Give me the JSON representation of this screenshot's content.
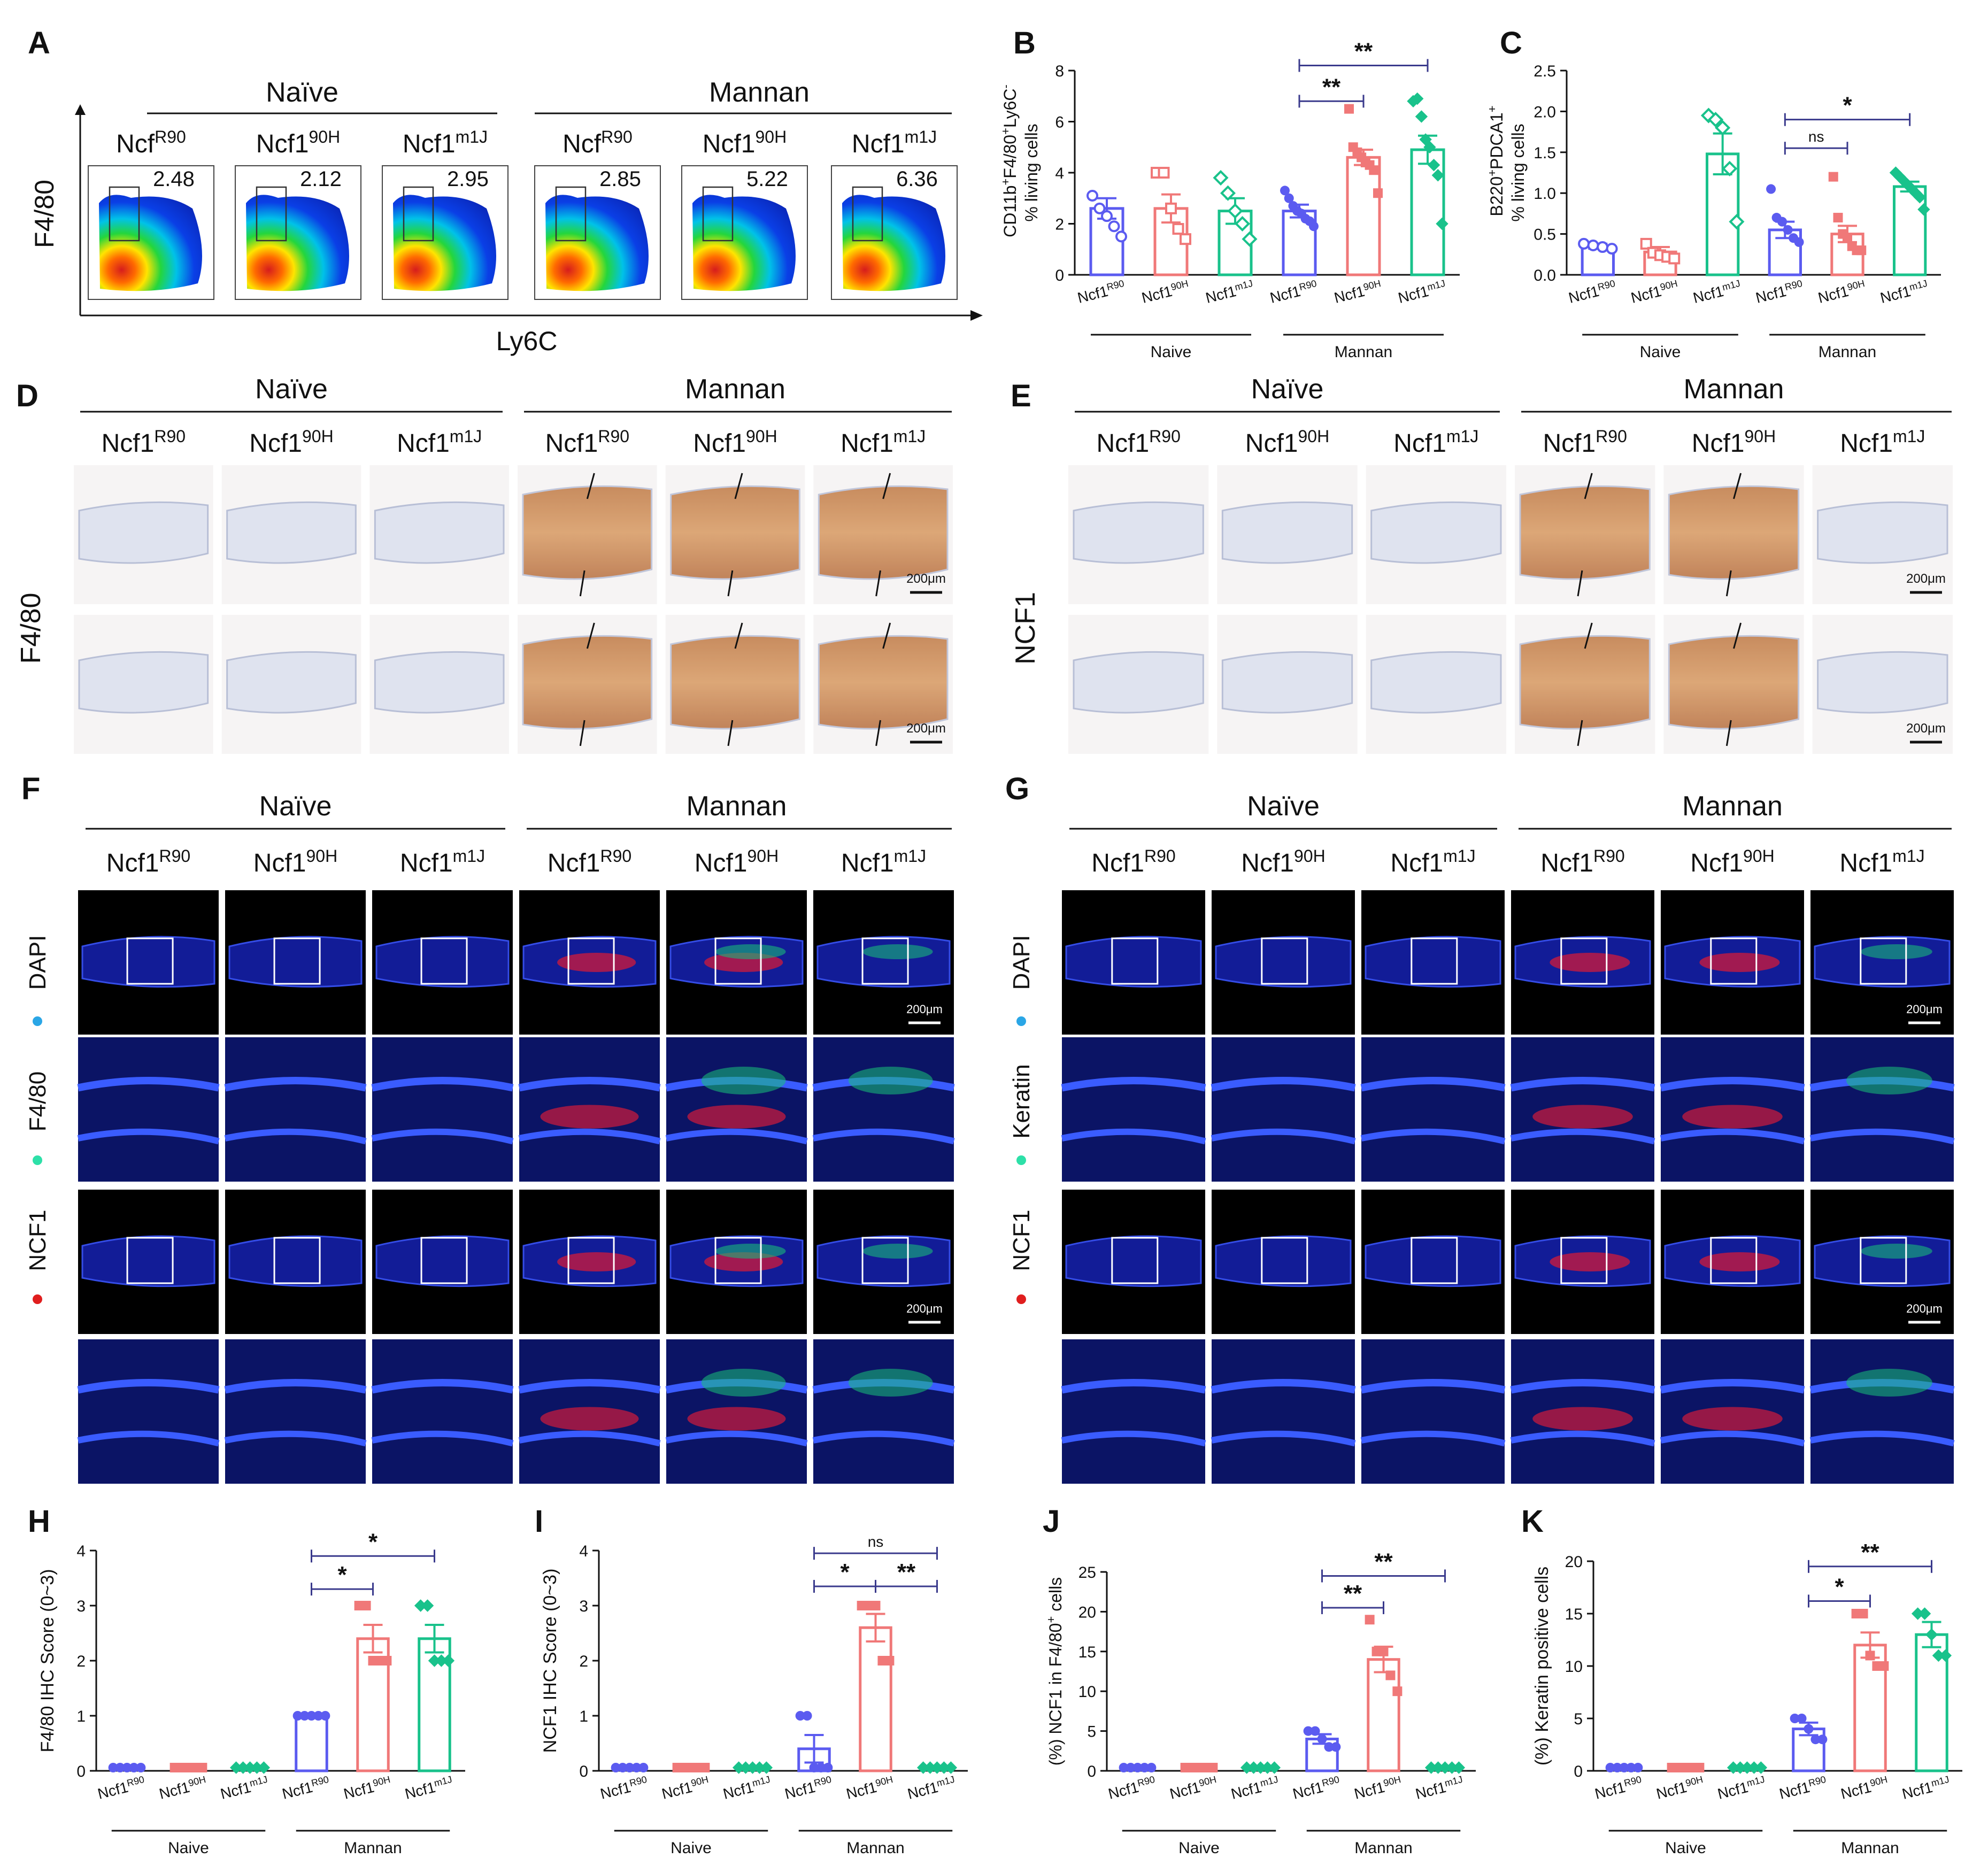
{
  "colors": {
    "R90": "#5b5bf0",
    "90H": "#f07878",
    "m1J": "#19c28b",
    "ink": "#111111"
  },
  "panels": {
    "A": {
      "letter": "A",
      "groups": [
        "Naïve",
        "Mannan"
      ],
      "yaxis": "F4/80",
      "xaxis": "Ly6C",
      "genotypes": [
        {
          "base": "Ncf",
          "sup": "R90"
        },
        {
          "base": "Ncf1",
          "sup": "90H"
        },
        {
          "base": "Ncf1",
          "sup": "m1J"
        },
        {
          "base": "Ncf",
          "sup": "R90"
        },
        {
          "base": "Ncf1",
          "sup": "90H"
        },
        {
          "base": "Ncf1",
          "sup": "m1J"
        }
      ],
      "gate_values": [
        "2.48",
        "2.12",
        "2.95",
        "2.85",
        "5.22",
        "6.36"
      ]
    },
    "D": {
      "letter": "D",
      "groups": [
        "Naïve",
        "Mannan"
      ],
      "stain": "F4/80",
      "scalebar": "200μm",
      "genotypes": [
        {
          "base": "Ncf1",
          "sup": "R90"
        },
        {
          "base": "Ncf1",
          "sup": "90H"
        },
        {
          "base": "Ncf1",
          "sup": "m1J"
        },
        {
          "base": "Ncf1",
          "sup": "R90"
        },
        {
          "base": "Ncf1",
          "sup": "90H"
        },
        {
          "base": "Ncf1",
          "sup": "m1J"
        }
      ]
    },
    "E": {
      "letter": "E",
      "groups": [
        "Naïve",
        "Mannan"
      ],
      "stain": "NCF1",
      "scalebar": "200μm",
      "genotypes": [
        {
          "base": "Ncf1",
          "sup": "R90"
        },
        {
          "base": "Ncf1",
          "sup": "90H"
        },
        {
          "base": "Ncf1",
          "sup": "m1J"
        },
        {
          "base": "Ncf1",
          "sup": "R90"
        },
        {
          "base": "Ncf1",
          "sup": "90H"
        },
        {
          "base": "Ncf1",
          "sup": "m1J"
        }
      ]
    },
    "F": {
      "letter": "F",
      "groups": [
        "Naïve",
        "Mannan"
      ],
      "scalebar": "200μm",
      "channels": [
        "DAPI",
        "F4/80",
        "NCF1"
      ],
      "genotypes": [
        {
          "base": "Ncf1",
          "sup": "R90"
        },
        {
          "base": "Ncf1",
          "sup": "90H"
        },
        {
          "base": "Ncf1",
          "sup": "m1J"
        },
        {
          "base": "Ncf1",
          "sup": "R90"
        },
        {
          "base": "Ncf1",
          "sup": "90H"
        },
        {
          "base": "Ncf1",
          "sup": "m1J"
        }
      ]
    },
    "G": {
      "letter": "G",
      "groups": [
        "Naïve",
        "Mannan"
      ],
      "scalebar": "200μm",
      "channels": [
        "DAPI",
        "Keratin",
        "NCF1"
      ],
      "genotypes": [
        {
          "base": "Ncf1",
          "sup": "R90"
        },
        {
          "base": "Ncf1",
          "sup": "90H"
        },
        {
          "base": "Ncf1",
          "sup": "m1J"
        },
        {
          "base": "Ncf1",
          "sup": "R90"
        },
        {
          "base": "Ncf1",
          "sup": "90H"
        },
        {
          "base": "Ncf1",
          "sup": "m1J"
        }
      ]
    }
  },
  "chart_data": [
    {
      "id": "B",
      "letter": "B",
      "type": "bar",
      "ylabel_parts": [
        "CD11b",
        "+",
        "F4/80",
        "+",
        "Ly6C",
        "-"
      ],
      "ylabel2": "% living cells",
      "ylim": [
        0,
        8
      ],
      "yticks": [
        "0",
        "2",
        "4",
        "6",
        "8"
      ],
      "groups": [
        "Naive",
        "Mannan"
      ],
      "categories": [
        {
          "base": "Ncf1",
          "sup": "R90"
        },
        {
          "base": "Ncf1",
          "sup": "90H"
        },
        {
          "base": "Ncf1",
          "sup": "m1J"
        },
        {
          "base": "Ncf1",
          "sup": "R90"
        },
        {
          "base": "Ncf1",
          "sup": "90H"
        },
        {
          "base": "Ncf1",
          "sup": "m1J"
        }
      ],
      "values": [
        2.6,
        2.6,
        2.5,
        2.5,
        4.6,
        4.9
      ],
      "errors": [
        0.4,
        0.55,
        0.5,
        0.25,
        0.3,
        0.55
      ],
      "points": [
        [
          3.1,
          2.6,
          2.3,
          1.9,
          1.5
        ],
        [
          4.0,
          4.0,
          2.6,
          1.8,
          1.4
        ],
        [
          3.8,
          3.2,
          2.5,
          2.0,
          1.4
        ],
        [
          3.3,
          3.0,
          2.7,
          2.5,
          2.4,
          2.2,
          2.1,
          1.9
        ],
        [
          6.5,
          5.0,
          4.8,
          4.6,
          4.4,
          4.3,
          4.1,
          3.2
        ],
        [
          6.8,
          6.9,
          6.2,
          5.3,
          5.0,
          4.3,
          3.9,
          2.0
        ]
      ],
      "filled": [
        false,
        false,
        false,
        true,
        true,
        true
      ],
      "sig": [
        {
          "from": 3,
          "to": 4,
          "label": "**",
          "level": 6.8
        },
        {
          "from": 3,
          "to": 5,
          "label": "**",
          "level": 8.2
        }
      ]
    },
    {
      "id": "C",
      "letter": "C",
      "type": "bar",
      "ylabel_parts": [
        "B220",
        "+",
        "PDCA1",
        "+"
      ],
      "ylabel2": "% living cells",
      "ylim": [
        0,
        2.5
      ],
      "yticks": [
        "0.0",
        "0.5",
        "1.0",
        "1.5",
        "2.0",
        "2.5"
      ],
      "groups": [
        "Naive",
        "Mannan"
      ],
      "categories": [
        {
          "base": "Ncf1",
          "sup": "R90"
        },
        {
          "base": "Ncf1",
          "sup": "90H"
        },
        {
          "base": "Ncf1",
          "sup": "m1J"
        },
        {
          "base": "Ncf1",
          "sup": "R90"
        },
        {
          "base": "Ncf1",
          "sup": "90H"
        },
        {
          "base": "Ncf1",
          "sup": "m1J"
        }
      ],
      "values": [
        0.35,
        0.28,
        1.48,
        0.55,
        0.5,
        1.08
      ],
      "errors": [
        0.03,
        0.06,
        0.25,
        0.1,
        0.1,
        0.06
      ],
      "points": [
        [
          0.38,
          0.36,
          0.34,
          0.32
        ],
        [
          0.38,
          0.27,
          0.24,
          0.22,
          0.2
        ],
        [
          1.95,
          1.9,
          1.8,
          1.3,
          0.65
        ],
        [
          1.05,
          0.7,
          0.65,
          0.55,
          0.45,
          0.4
        ],
        [
          1.2,
          0.7,
          0.5,
          0.45,
          0.35,
          0.3,
          0.3
        ],
        [
          1.25,
          1.2,
          1.15,
          1.1,
          1.05,
          1.0,
          0.95,
          0.8
        ]
      ],
      "filled": [
        false,
        false,
        false,
        true,
        true,
        true
      ],
      "sig": [
        {
          "from": 3,
          "to": 4,
          "label": "ns",
          "level": 1.55
        },
        {
          "from": 3,
          "to": 5,
          "label": "*",
          "level": 1.9
        }
      ]
    },
    {
      "id": "H",
      "letter": "H",
      "type": "bar",
      "ylabel": "F4/80 IHC Score (0~3)",
      "ylim": [
        0,
        4
      ],
      "yticks": [
        "0",
        "1",
        "2",
        "3",
        "4"
      ],
      "groups": [
        "Naive",
        "Mannan"
      ],
      "categories": [
        {
          "base": "Ncf1",
          "sup": "R90"
        },
        {
          "base": "Ncf1",
          "sup": "90H"
        },
        {
          "base": "Ncf1",
          "sup": "m1J"
        },
        {
          "base": "Ncf1",
          "sup": "R90"
        },
        {
          "base": "Ncf1",
          "sup": "90H"
        },
        {
          "base": "Ncf1",
          "sup": "m1J"
        }
      ],
      "values": [
        0,
        0,
        0,
        1,
        2.4,
        2.4
      ],
      "errors": [
        0,
        0,
        0,
        0,
        0.25,
        0.25
      ],
      "points": [
        [
          0,
          0,
          0,
          0,
          0
        ],
        [
          0,
          0,
          0,
          0,
          0
        ],
        [
          0,
          0,
          0,
          0,
          0
        ],
        [
          1,
          1,
          1,
          1,
          1
        ],
        [
          3,
          3,
          2,
          2,
          2
        ],
        [
          3,
          3,
          2,
          2,
          2
        ]
      ],
      "filled": [
        true,
        true,
        true,
        true,
        true,
        true
      ],
      "sig": [
        {
          "from": 3,
          "to": 4,
          "label": "*",
          "level": 3.3
        },
        {
          "from": 3,
          "to": 5,
          "label": "*",
          "level": 3.9
        }
      ]
    },
    {
      "id": "I",
      "letter": "I",
      "type": "bar",
      "ylabel": "NCF1 IHC Score (0~3)",
      "ylim": [
        0,
        4
      ],
      "yticks": [
        "0",
        "1",
        "2",
        "3",
        "4"
      ],
      "groups": [
        "Naive",
        "Mannan"
      ],
      "categories": [
        {
          "base": "Ncf1",
          "sup": "R90"
        },
        {
          "base": "Ncf1",
          "sup": "90H"
        },
        {
          "base": "Ncf1",
          "sup": "m1J"
        },
        {
          "base": "Ncf1",
          "sup": "R90"
        },
        {
          "base": "Ncf1",
          "sup": "90H"
        },
        {
          "base": "Ncf1",
          "sup": "m1J"
        }
      ],
      "values": [
        0,
        0,
        0,
        0.4,
        2.6,
        0
      ],
      "errors": [
        0,
        0,
        0,
        0.25,
        0.25,
        0
      ],
      "points": [
        [
          0,
          0,
          0,
          0,
          0
        ],
        [
          0,
          0,
          0,
          0,
          0
        ],
        [
          0,
          0,
          0,
          0,
          0
        ],
        [
          1,
          1,
          0,
          0,
          0
        ],
        [
          3,
          3,
          3,
          2,
          2
        ],
        [
          0,
          0,
          0,
          0,
          0
        ]
      ],
      "filled": [
        true,
        true,
        true,
        true,
        true,
        true
      ],
      "sig": [
        {
          "from": 3,
          "to": 4,
          "label": "*",
          "level": 3.35
        },
        {
          "from": 4,
          "to": 5,
          "label": "**",
          "level": 3.35
        },
        {
          "from": 3,
          "to": 5,
          "label": "ns",
          "level": 3.95
        }
      ]
    },
    {
      "id": "J",
      "letter": "J",
      "type": "bar",
      "ylabel_parts": [
        "(%) NCF1 in F4/80",
        "+",
        " cells"
      ],
      "ylim": [
        0,
        25
      ],
      "yticks": [
        "0",
        "5",
        "10",
        "15",
        "20",
        "25"
      ],
      "groups": [
        "Naive",
        "Mannan"
      ],
      "categories": [
        {
          "base": "Ncf1",
          "sup": "R90"
        },
        {
          "base": "Ncf1",
          "sup": "90H"
        },
        {
          "base": "Ncf1",
          "sup": "m1J"
        },
        {
          "base": "Ncf1",
          "sup": "R90"
        },
        {
          "base": "Ncf1",
          "sup": "90H"
        },
        {
          "base": "Ncf1",
          "sup": "m1J"
        }
      ],
      "values": [
        0,
        0,
        0,
        4,
        14,
        0
      ],
      "errors": [
        0,
        0,
        0,
        0.6,
        1.6,
        0
      ],
      "points": [
        [
          0,
          0,
          0,
          0,
          0
        ],
        [
          0,
          0,
          0,
          0,
          0
        ],
        [
          0,
          0,
          0,
          0,
          0
        ],
        [
          5,
          5,
          4,
          3,
          3
        ],
        [
          19,
          15,
          15,
          12,
          10
        ],
        [
          0,
          0,
          0,
          0,
          0
        ]
      ],
      "filled": [
        true,
        true,
        true,
        true,
        true,
        true
      ],
      "sig": [
        {
          "from": 3,
          "to": 4,
          "label": "**",
          "level": 20.5
        },
        {
          "from": 3,
          "to": 5,
          "label": "**",
          "level": 24.5
        }
      ]
    },
    {
      "id": "K",
      "letter": "K",
      "type": "bar",
      "ylabel": "(%) Keratin positive cells",
      "ylim": [
        0,
        20
      ],
      "yticks": [
        "0",
        "5",
        "10",
        "15",
        "20"
      ],
      "groups": [
        "Naive",
        "Mannan"
      ],
      "categories": [
        {
          "base": "Ncf1",
          "sup": "R90"
        },
        {
          "base": "Ncf1",
          "sup": "90H"
        },
        {
          "base": "Ncf1",
          "sup": "m1J"
        },
        {
          "base": "Ncf1",
          "sup": "R90"
        },
        {
          "base": "Ncf1",
          "sup": "90H"
        },
        {
          "base": "Ncf1",
          "sup": "m1J"
        }
      ],
      "values": [
        0,
        0,
        0,
        4,
        12,
        13
      ],
      "errors": [
        0,
        0,
        0,
        0.6,
        1.2,
        1.2
      ],
      "points": [
        [
          0,
          0,
          0,
          0,
          0
        ],
        [
          0,
          0,
          0,
          0,
          0
        ],
        [
          0,
          0,
          0,
          0,
          0
        ],
        [
          5,
          5,
          4,
          3,
          3
        ],
        [
          15,
          15,
          11,
          10,
          10
        ],
        [
          15,
          15,
          13,
          11,
          11
        ]
      ],
      "filled": [
        true,
        true,
        true,
        true,
        true,
        true
      ],
      "sig": [
        {
          "from": 3,
          "to": 4,
          "label": "*",
          "level": 16.2
        },
        {
          "from": 3,
          "to": 5,
          "label": "**",
          "level": 19.5
        }
      ]
    }
  ]
}
